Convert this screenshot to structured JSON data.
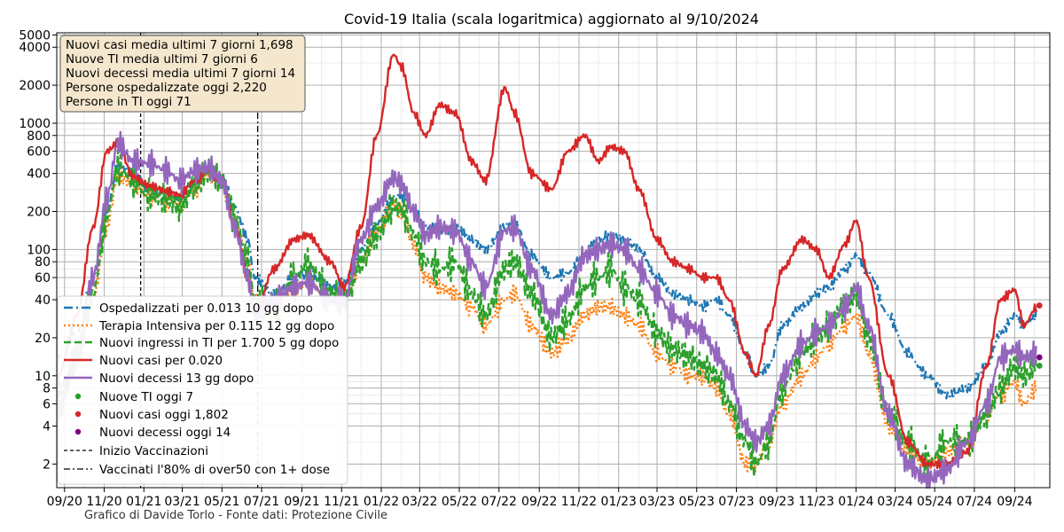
{
  "chart_data": {
    "type": "line",
    "title": "Covid-19 Italia (scala logaritmica) aggiornato al 9/10/2024",
    "credit": "Grafico di Davide Torlo - Fonte dati: Protezione Civile",
    "yscale": "log",
    "grid": true,
    "legend_position": "lower-left",
    "info_box_position": "top-left",
    "ylim": [
      1.3,
      5200
    ],
    "xlim": [
      "2020-08-20",
      "2024-10-25"
    ],
    "x_tick_labels": [
      "09/20",
      "11/20",
      "01/21",
      "03/21",
      "05/21",
      "07/21",
      "09/21",
      "11/21",
      "01/22",
      "03/22",
      "05/22",
      "07/22",
      "09/22",
      "11/22",
      "01/23",
      "03/23",
      "05/23",
      "07/23",
      "09/23",
      "11/23",
      "01/24",
      "03/24",
      "05/24",
      "07/24",
      "09/24"
    ],
    "x_tick_dates": [
      "2020-09-01",
      "2020-11-01",
      "2021-01-01",
      "2021-03-01",
      "2021-05-01",
      "2021-07-01",
      "2021-09-01",
      "2021-11-01",
      "2022-01-01",
      "2022-03-01",
      "2022-05-01",
      "2022-07-01",
      "2022-09-01",
      "2022-11-01",
      "2023-01-01",
      "2023-03-01",
      "2023-05-01",
      "2023-07-01",
      "2023-09-01",
      "2023-11-01",
      "2024-01-01",
      "2024-03-01",
      "2024-05-01",
      "2024-07-01",
      "2024-09-01"
    ],
    "y_ticks": [
      2,
      4,
      6,
      8,
      10,
      20,
      40,
      60,
      80,
      100,
      200,
      400,
      600,
      800,
      1000,
      2000,
      4000,
      5000
    ],
    "y_tick_labels": [
      "2",
      "4",
      "6",
      "8",
      "10",
      "20",
      "40",
      "60",
      "80",
      "100",
      "200",
      "400",
      "600",
      "800",
      "1000",
      "2000",
      "4000",
      "5000"
    ],
    "info_box": [
      "Nuovi casi media ultimi 7 giorni 1,698",
      "Nuove TI media ultimi 7 giorni 6",
      "Nuovi decessi media ultimi 7 giorni 14",
      "Persone ospedalizzate oggi 2,220",
      "Persone in TI oggi 71"
    ],
    "vlines": [
      {
        "name": "Inizio Vaccinazioni",
        "date": "2020-12-27",
        "style": "dashed",
        "color": "#000000"
      },
      {
        "name": "Vaccinati l'80% di over50 con 1+ dose",
        "date": "2021-06-25",
        "style": "dashdot",
        "color": "#000000"
      }
    ],
    "series": [
      {
        "name": "Ospedalizzati per 0.013 10 gg dopo",
        "color": "#1f77b4",
        "style": "dashdot",
        "x": [
          "2020-08-22",
          "2020-09-20",
          "2020-10-15",
          "2020-11-05",
          "2020-11-22",
          "2020-12-15",
          "2021-01-10",
          "2021-02-05",
          "2021-02-25",
          "2021-03-20",
          "2021-04-10",
          "2021-05-01",
          "2021-05-20",
          "2021-06-10",
          "2021-06-20",
          "2021-07-20",
          "2021-08-20",
          "2021-09-10",
          "2021-10-15",
          "2021-11-05",
          "2021-12-01",
          "2021-12-25",
          "2022-01-20",
          "2022-02-01",
          "2022-02-20",
          "2022-03-10",
          "2022-04-01",
          "2022-04-25",
          "2022-05-20",
          "2022-06-10",
          "2022-07-10",
          "2022-07-25",
          "2022-08-20",
          "2022-09-20",
          "2022-10-15",
          "2022-11-10",
          "2022-12-01",
          "2022-12-20",
          "2023-01-10",
          "2023-02-01",
          "2023-03-01",
          "2023-03-25",
          "2023-04-20",
          "2023-05-10",
          "2023-05-31",
          "2023-06-20",
          "2023-07-15",
          "2023-07-31",
          "2023-08-20",
          "2023-09-10",
          "2023-10-10",
          "2023-11-01",
          "2023-11-20",
          "2023-12-15",
          "2024-01-01",
          "2024-01-20",
          "2024-02-20",
          "2024-03-20",
          "2024-04-20",
          "2024-05-20",
          "2024-06-20",
          "2024-07-20",
          "2024-08-10",
          "2024-09-01",
          "2024-09-15",
          "2024-10-05"
        ],
        "values": [
          14,
          22,
          60,
          200,
          470,
          400,
          300,
          280,
          260,
          330,
          430,
          380,
          220,
          120,
          60,
          45,
          60,
          65,
          50,
          55,
          100,
          160,
          260,
          270,
          200,
          150,
          140,
          150,
          120,
          100,
          150,
          160,
          90,
          60,
          65,
          90,
          120,
          130,
          120,
          100,
          60,
          45,
          40,
          35,
          40,
          30,
          15,
          10,
          12,
          25,
          35,
          45,
          50,
          70,
          90,
          65,
          30,
          15,
          10,
          7,
          8,
          12,
          22,
          30,
          25,
          30
        ]
      },
      {
        "name": "Terapia Intensiva per 0.115 12 gg dopo",
        "color": "#ff7f0e",
        "style": "dotted",
        "x": [
          "2020-08-22",
          "2020-09-20",
          "2020-10-15",
          "2020-11-05",
          "2020-11-22",
          "2020-12-15",
          "2021-01-10",
          "2021-02-05",
          "2021-02-25",
          "2021-03-20",
          "2021-04-10",
          "2021-05-01",
          "2021-05-20",
          "2021-06-10",
          "2021-06-20",
          "2021-07-20",
          "2021-08-20",
          "2021-09-10",
          "2021-10-15",
          "2021-11-05",
          "2021-12-01",
          "2021-12-25",
          "2022-01-20",
          "2022-02-01",
          "2022-02-20",
          "2022-03-10",
          "2022-04-01",
          "2022-04-25",
          "2022-05-20",
          "2022-06-10",
          "2022-07-10",
          "2022-07-25",
          "2022-08-20",
          "2022-09-20",
          "2022-10-15",
          "2022-11-10",
          "2022-12-01",
          "2022-12-20",
          "2023-01-10",
          "2023-02-01",
          "2023-03-01",
          "2023-03-25",
          "2023-04-20",
          "2023-05-10",
          "2023-05-31",
          "2023-06-20",
          "2023-07-15",
          "2023-07-31",
          "2023-08-20",
          "2023-09-10",
          "2023-10-10",
          "2023-11-01",
          "2023-11-20",
          "2023-12-15",
          "2024-01-01",
          "2024-01-20",
          "2024-02-20",
          "2024-03-20",
          "2024-04-20",
          "2024-05-20",
          "2024-06-20",
          "2024-07-20",
          "2024-08-10",
          "2024-09-01",
          "2024-09-15",
          "2024-10-05"
        ],
        "values": [
          6,
          12,
          40,
          150,
          390,
          330,
          260,
          240,
          230,
          300,
          400,
          330,
          170,
          80,
          40,
          30,
          50,
          55,
          38,
          40,
          80,
          140,
          230,
          200,
          110,
          60,
          50,
          45,
          35,
          25,
          40,
          45,
          25,
          15,
          20,
          30,
          35,
          35,
          30,
          25,
          15,
          12,
          10,
          10,
          8,
          5,
          2,
          2,
          3,
          6,
          10,
          14,
          18,
          25,
          30,
          15,
          4,
          2.5,
          2,
          2.5,
          3,
          5,
          7,
          9,
          6,
          8
        ]
      },
      {
        "name": "Nuovi ingressi in TI per 1.700 5 gg dopo",
        "color": "#2ca02c",
        "style": "dashed",
        "x": [
          "2020-08-22",
          "2020-09-20",
          "2020-10-15",
          "2020-11-05",
          "2020-11-22",
          "2020-12-15",
          "2021-01-10",
          "2021-02-05",
          "2021-02-25",
          "2021-03-20",
          "2021-04-10",
          "2021-05-01",
          "2021-05-20",
          "2021-06-10",
          "2021-06-20",
          "2021-07-20",
          "2021-08-20",
          "2021-09-10",
          "2021-10-15",
          "2021-11-05",
          "2021-12-01",
          "2021-12-25",
          "2022-01-20",
          "2022-02-01",
          "2022-02-20",
          "2022-03-10",
          "2022-04-01",
          "2022-04-25",
          "2022-05-20",
          "2022-06-10",
          "2022-07-10",
          "2022-07-25",
          "2022-08-20",
          "2022-09-20",
          "2022-10-15",
          "2022-11-10",
          "2022-12-01",
          "2022-12-20",
          "2023-01-10",
          "2023-02-01",
          "2023-03-01",
          "2023-03-25",
          "2023-04-20",
          "2023-05-10",
          "2023-05-31",
          "2023-06-20",
          "2023-07-15",
          "2023-07-31",
          "2023-08-20",
          "2023-09-10",
          "2023-10-10",
          "2023-11-01",
          "2023-11-20",
          "2023-12-15",
          "2024-01-01",
          "2024-01-20",
          "2024-02-20",
          "2024-03-20",
          "2024-04-20",
          "2024-05-20",
          "2024-06-20",
          "2024-07-20",
          "2024-08-10",
          "2024-09-01",
          "2024-09-15",
          "2024-10-05"
        ],
        "values": [
          7,
          14,
          45,
          180,
          450,
          350,
          270,
          250,
          220,
          320,
          420,
          350,
          180,
          80,
          40,
          35,
          60,
          75,
          45,
          40,
          80,
          130,
          220,
          210,
          130,
          80,
          70,
          80,
          45,
          30,
          70,
          80,
          45,
          20,
          28,
          50,
          60,
          70,
          50,
          40,
          22,
          16,
          14,
          12,
          10,
          6,
          3,
          2,
          3,
          8,
          15,
          20,
          25,
          35,
          45,
          20,
          5,
          3,
          2,
          3,
          3,
          5,
          8,
          12,
          10,
          12
        ]
      },
      {
        "name": "Nuovi casi per 0.020",
        "color": "#d62728",
        "style": "solid",
        "x": [
          "2020-08-22",
          "2020-09-20",
          "2020-10-15",
          "2020-11-05",
          "2020-11-22",
          "2020-12-15",
          "2021-01-10",
          "2021-02-05",
          "2021-02-25",
          "2021-03-20",
          "2021-04-10",
          "2021-05-01",
          "2021-05-20",
          "2021-06-10",
          "2021-06-20",
          "2021-07-20",
          "2021-08-20",
          "2021-09-10",
          "2021-10-15",
          "2021-11-05",
          "2021-12-01",
          "2021-12-25",
          "2022-01-20",
          "2022-02-01",
          "2022-02-20",
          "2022-03-10",
          "2022-04-01",
          "2022-04-25",
          "2022-05-20",
          "2022-06-10",
          "2022-07-10",
          "2022-07-25",
          "2022-08-20",
          "2022-09-20",
          "2022-10-15",
          "2022-11-10",
          "2022-12-01",
          "2022-12-20",
          "2023-01-10",
          "2023-02-01",
          "2023-03-01",
          "2023-03-25",
          "2023-04-20",
          "2023-05-10",
          "2023-05-31",
          "2023-06-20",
          "2023-07-15",
          "2023-07-31",
          "2023-08-20",
          "2023-09-10",
          "2023-10-10",
          "2023-11-01",
          "2023-11-20",
          "2023-12-15",
          "2024-01-01",
          "2024-01-20",
          "2024-02-20",
          "2024-03-20",
          "2024-04-20",
          "2024-05-20",
          "2024-06-20",
          "2024-07-20",
          "2024-08-10",
          "2024-09-01",
          "2024-09-15",
          "2024-10-05"
        ],
        "values": [
          10,
          30,
          150,
          600,
          700,
          380,
          320,
          290,
          270,
          350,
          420,
          350,
          160,
          60,
          30,
          70,
          120,
          130,
          80,
          50,
          150,
          800,
          3500,
          2800,
          1200,
          800,
          1400,
          1200,
          500,
          350,
          1900,
          1200,
          400,
          300,
          600,
          800,
          500,
          650,
          600,
          300,
          120,
          80,
          70,
          60,
          60,
          40,
          15,
          10,
          25,
          70,
          120,
          100,
          60,
          110,
          170,
          60,
          10,
          3,
          2,
          2,
          2.5,
          12,
          40,
          48,
          25,
          35
        ]
      },
      {
        "name": "Nuovi decessi 13 gg dopo",
        "color": "#9467bd",
        "style": "solid",
        "x": [
          "2020-08-22",
          "2020-09-20",
          "2020-10-15",
          "2020-11-05",
          "2020-11-22",
          "2020-12-15",
          "2021-01-10",
          "2021-02-05",
          "2021-02-25",
          "2021-03-20",
          "2021-04-10",
          "2021-05-01",
          "2021-05-20",
          "2021-06-10",
          "2021-06-20",
          "2021-07-20",
          "2021-08-20",
          "2021-09-10",
          "2021-10-15",
          "2021-11-05",
          "2021-12-01",
          "2021-12-25",
          "2022-01-20",
          "2022-02-01",
          "2022-02-20",
          "2022-03-10",
          "2022-04-01",
          "2022-04-25",
          "2022-05-20",
          "2022-06-10",
          "2022-07-10",
          "2022-07-25",
          "2022-08-20",
          "2022-09-20",
          "2022-10-15",
          "2022-11-10",
          "2022-12-01",
          "2022-12-20",
          "2023-01-10",
          "2023-02-01",
          "2023-03-01",
          "2023-03-25",
          "2023-04-20",
          "2023-05-10",
          "2023-05-31",
          "2023-06-20",
          "2023-07-15",
          "2023-07-31",
          "2023-08-20",
          "2023-09-10",
          "2023-10-10",
          "2023-11-01",
          "2023-11-20",
          "2023-12-15",
          "2024-01-01",
          "2024-01-20",
          "2024-02-20",
          "2024-03-20",
          "2024-04-20",
          "2024-05-20",
          "2024-06-20",
          "2024-07-20",
          "2024-08-10",
          "2024-09-01",
          "2024-09-15",
          "2024-10-05"
        ],
        "values": [
          5,
          15,
          60,
          250,
          700,
          500,
          480,
          420,
          350,
          420,
          450,
          350,
          150,
          60,
          30,
          40,
          50,
          55,
          40,
          40,
          120,
          220,
          370,
          330,
          200,
          130,
          150,
          140,
          80,
          50,
          140,
          150,
          70,
          30,
          45,
          90,
          100,
          110,
          100,
          70,
          45,
          30,
          25,
          22,
          15,
          10,
          4,
          3,
          4,
          10,
          18,
          22,
          25,
          35,
          50,
          25,
          5,
          2,
          1.5,
          1.8,
          3,
          6,
          14,
          16,
          14,
          15
        ]
      }
    ],
    "today_points": [
      {
        "name": "Nuove TI oggi 7",
        "color": "#2ca02c",
        "date": "2024-10-09",
        "value": 12
      },
      {
        "name": "Nuovi casi oggi 1,802",
        "color": "#d62728",
        "date": "2024-10-09",
        "value": 36
      },
      {
        "name": "Nuovi decessi oggi 14",
        "color": "#800080",
        "date": "2024-10-09",
        "value": 14
      }
    ]
  }
}
